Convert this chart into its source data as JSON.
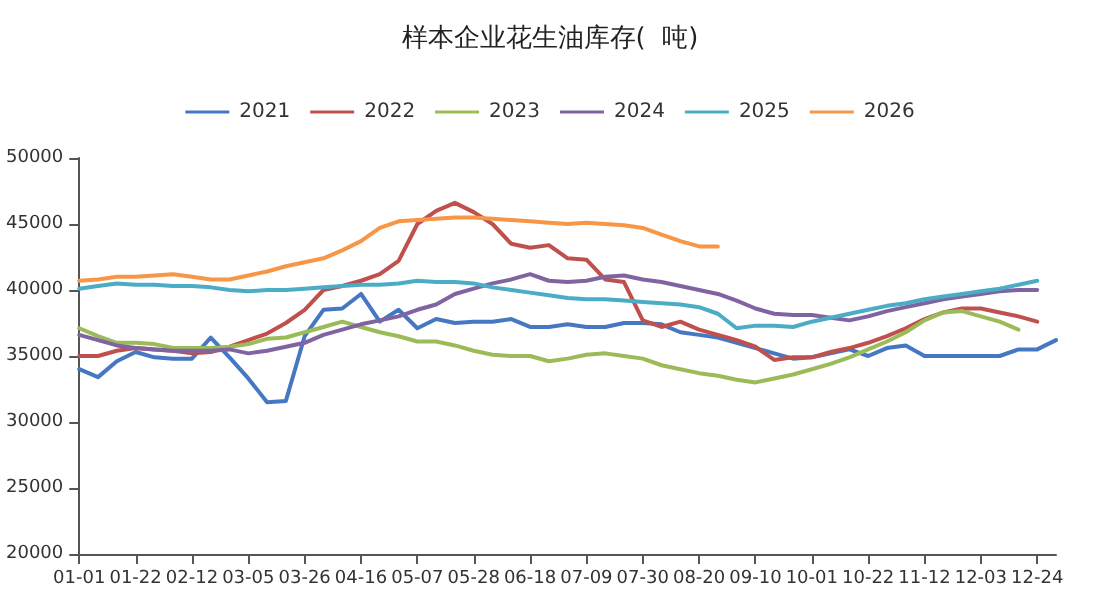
{
  "chart_data": {
    "type": "line",
    "title": "样本企业花生油库存(  吨)",
    "categories": [
      "01-01",
      null,
      null,
      "01-22",
      null,
      null,
      "02-12",
      null,
      null,
      "03-05",
      null,
      null,
      "03-26",
      null,
      null,
      "04-16",
      null,
      null,
      "05-07",
      null,
      null,
      "05-28",
      null,
      null,
      "06-18",
      null,
      null,
      "07-09",
      null,
      null,
      "07-30",
      null,
      null,
      "08-20",
      null,
      null,
      "09-10",
      null,
      null,
      "10-01",
      null,
      null,
      "10-22",
      null,
      null,
      "11-12",
      null,
      null,
      "12-03",
      null,
      null,
      "12-24",
      null
    ],
    "series": [
      {
        "name": "2021",
        "color": "#4677c2",
        "values": [
          34000,
          33400,
          34600,
          35300,
          34900,
          34800,
          34800,
          36400,
          34900,
          33300,
          31500,
          31600,
          36500,
          38500,
          38600,
          39700,
          37600,
          38500,
          37100,
          37800,
          37500,
          37600,
          37600,
          37800,
          37200,
          37200,
          37400,
          37200,
          37200,
          37500,
          37500,
          37400,
          36800,
          36600,
          36400,
          36000,
          35600,
          35200,
          34800,
          34900,
          35200,
          35500,
          35000,
          35600,
          35800,
          35000,
          35000,
          35000,
          35000,
          35000,
          35500,
          35500,
          36200
        ]
      },
      {
        "name": "2022",
        "color": "#c0504d",
        "values": [
          35000,
          35000,
          35400,
          35600,
          35500,
          35400,
          35200,
          35300,
          35700,
          36200,
          36700,
          37500,
          38500,
          40000,
          40300,
          40700,
          41200,
          42200,
          45000,
          46000,
          46600,
          45900,
          45000,
          43500,
          43200,
          43400,
          42400,
          42300,
          40800,
          40600,
          37700,
          37200,
          37600,
          37000,
          36600,
          36200,
          35700,
          34700,
          34900,
          34900,
          35300,
          35600,
          36000,
          36500,
          37100,
          37800,
          38300,
          38600,
          38600,
          38300,
          38000,
          37600,
          null
        ]
      },
      {
        "name": "2023",
        "color": "#9bbb59",
        "values": [
          37100,
          36500,
          36000,
          36000,
          35900,
          35600,
          35600,
          35600,
          35700,
          35900,
          36300,
          36400,
          36800,
          37200,
          37600,
          37200,
          36800,
          36500,
          36100,
          36100,
          35800,
          35400,
          35100,
          35000,
          35000,
          34600,
          34800,
          35100,
          35200,
          35000,
          34800,
          34300,
          34000,
          33700,
          33500,
          33200,
          33000,
          33300,
          33600,
          34000,
          34400,
          34900,
          35500,
          36100,
          36800,
          37700,
          38300,
          38400,
          38000,
          37600,
          37000,
          null,
          null
        ]
      },
      {
        "name": "2024",
        "color": "#8064a2",
        "values": [
          36600,
          36200,
          35800,
          35600,
          35500,
          35400,
          35400,
          35400,
          35500,
          35200,
          35400,
          35700,
          36000,
          36600,
          37000,
          37400,
          37700,
          38000,
          38500,
          38900,
          39700,
          40100,
          40500,
          40800,
          41200,
          40700,
          40600,
          40700,
          41000,
          41100,
          40800,
          40600,
          40300,
          40000,
          39700,
          39200,
          38600,
          38200,
          38100,
          38100,
          37900,
          37700,
          38000,
          38400,
          38700,
          39000,
          39300,
          39500,
          39700,
          39900,
          40000,
          40000,
          null
        ]
      },
      {
        "name": "2025",
        "color": "#4bacc6",
        "values": [
          40100,
          40300,
          40500,
          40400,
          40400,
          40300,
          40300,
          40200,
          40000,
          39900,
          40000,
          40000,
          40100,
          40200,
          40300,
          40400,
          40400,
          40500,
          40700,
          40600,
          40600,
          40500,
          40200,
          40000,
          39800,
          39600,
          39400,
          39300,
          39300,
          39200,
          39100,
          39000,
          38900,
          38700,
          38200,
          37100,
          37300,
          37300,
          37200,
          37600,
          37900,
          38200,
          38500,
          38800,
          39000,
          39300,
          39500,
          39700,
          39900,
          40100,
          40400,
          40700,
          null
        ]
      },
      {
        "name": "2026",
        "color": "#f79646",
        "values": [
          40700,
          40800,
          41000,
          41000,
          41100,
          41200,
          41000,
          40800,
          40800,
          41100,
          41400,
          41800,
          42100,
          42400,
          43000,
          43700,
          44700,
          45200,
          45300,
          45400,
          45500,
          45500,
          45400,
          45300,
          45200,
          45100,
          45000,
          45100,
          45000,
          44900,
          44700,
          44200,
          43700,
          43300,
          43300,
          null,
          null,
          null,
          null,
          null,
          null,
          null,
          null,
          null,
          null,
          null,
          null,
          null,
          null,
          null,
          null,
          null,
          null
        ]
      }
    ],
    "ylim": [
      20000,
      50000
    ],
    "yticks": [
      20000,
      25000,
      30000,
      35000,
      40000,
      45000,
      50000
    ],
    "grid": false,
    "legend": "top",
    "marker": "none",
    "line_style": "solid"
  }
}
